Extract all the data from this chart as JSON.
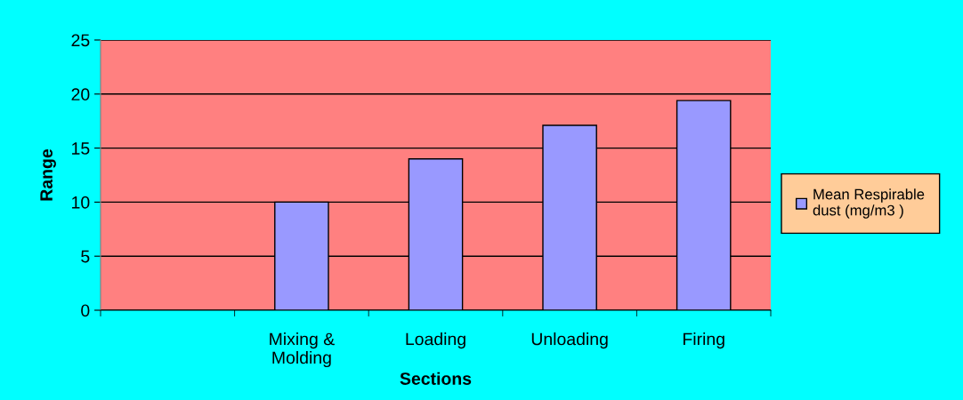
{
  "chart_data": {
    "type": "bar",
    "xlabel": "Sections",
    "ylabel": "Range",
    "categories": [
      null,
      "Mixing &\nMolding",
      "Loading",
      "Unloading",
      "Firing"
    ],
    "series": [
      {
        "name": "Mean Respirable\ndust (mg/m3 )",
        "color": "#9999ff",
        "values": [
          null,
          10,
          14,
          17.1,
          19.4
        ]
      }
    ],
    "ylim": [
      0,
      25
    ],
    "yticks": [
      0,
      5,
      10,
      15,
      20,
      25
    ],
    "grid": "y",
    "legend": "right"
  }
}
